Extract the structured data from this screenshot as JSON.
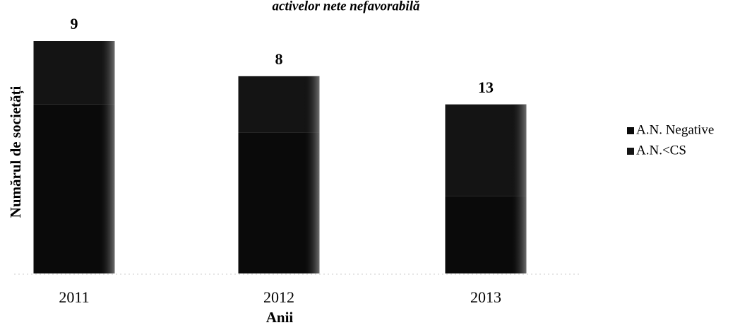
{
  "chart_data": {
    "type": "stacked_bar",
    "title": "activelor nete nefavorabilă",
    "x_label": "Anii",
    "y_label": "Numărul de societăți",
    "categories": [
      "2011",
      "2012",
      "2013"
    ],
    "series": [
      {
        "name": "A.N. Negative",
        "color": "#0a0a0a",
        "values": [
          24,
          20,
          11
        ]
      },
      {
        "name": "A.N.<CS",
        "color": "#141414",
        "values": [
          9,
          8,
          13
        ]
      }
    ],
    "labeled_series": 1,
    "legend": "right"
  }
}
